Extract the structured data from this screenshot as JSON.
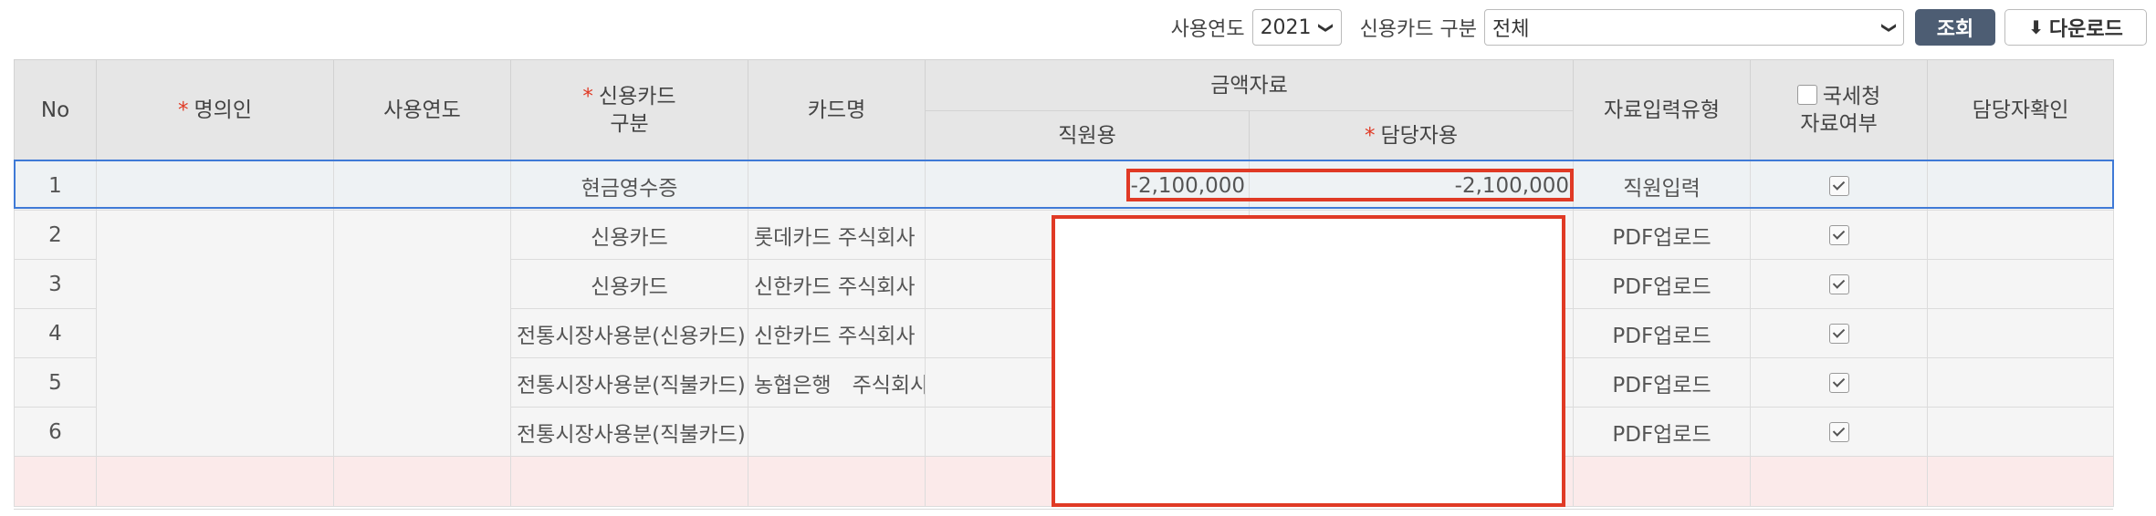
{
  "toolbar": {
    "year_label": "사용연도",
    "year_value": "2021",
    "type_label": "신용카드 구분",
    "type_value": "전체",
    "search_label": "조회",
    "download_label": "다운로드"
  },
  "table": {
    "headers": {
      "no": "No",
      "owner": "명의인",
      "year": "사용연도",
      "card_type": "신용카드\n구분",
      "card_name": "카드명",
      "amount": "금액자료",
      "amount_staff": "직원용",
      "amount_manager": "담당자용",
      "input_type": "자료입력유형",
      "nts": "국세청\n자료여부",
      "manager_check": "담당자확인"
    },
    "rows": [
      {
        "no": "1",
        "card_type": "현금영수증",
        "card_name": "",
        "amount_staff": "-2,100,000",
        "amount_manager": "-2,100,000",
        "input_type": "직원입력",
        "nts": true
      },
      {
        "no": "2",
        "card_type": "신용카드",
        "card_name": "롯데카드 주식회사",
        "amount_staff": "",
        "amount_manager": "",
        "input_type": "PDF업로드",
        "nts": true
      },
      {
        "no": "3",
        "card_type": "신용카드",
        "card_name": "신한카드 주식회사",
        "amount_staff": "",
        "amount_manager": "",
        "input_type": "PDF업로드",
        "nts": true
      },
      {
        "no": "4",
        "card_type": "전통시장사용분(신용카드)",
        "card_name": "신한카드 주식회사",
        "amount_staff": "",
        "amount_manager": "",
        "input_type": "PDF업로드",
        "nts": true
      },
      {
        "no": "5",
        "card_type": "전통시장사용분(직불카드)",
        "card_name": "농협은행　주식회사",
        "amount_staff": "",
        "amount_manager": "",
        "input_type": "PDF업로드",
        "nts": true
      },
      {
        "no": "6",
        "card_type": "전통시장사용분(직불카드)",
        "card_name": "",
        "amount_staff": "",
        "amount_manager": "",
        "input_type": "PDF업로드",
        "nts": true
      }
    ]
  },
  "colors": {
    "required": "#e03a25",
    "selection": "#3f7ad6",
    "search_button": "#4d5d73"
  }
}
